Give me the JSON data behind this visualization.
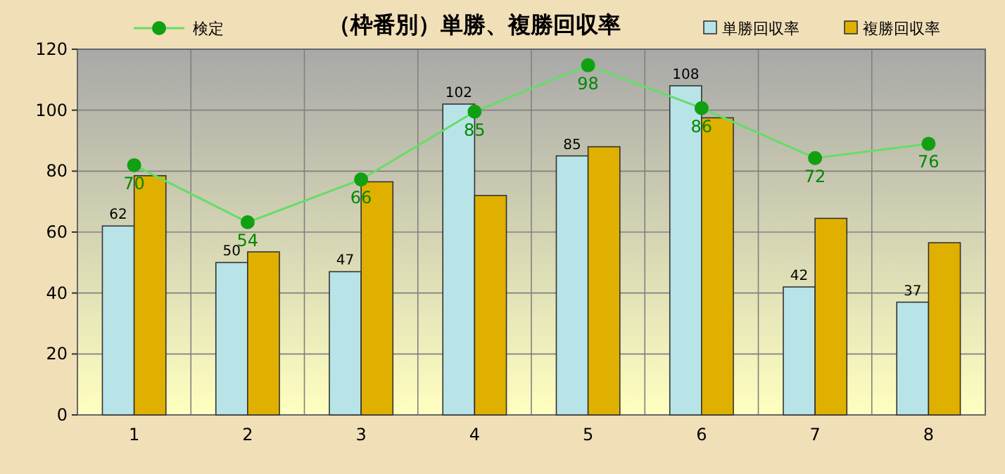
{
  "chart_data": {
    "type": "bar",
    "title": "（枠番別）単勝、複勝回収率",
    "categories": [
      "1",
      "2",
      "3",
      "4",
      "5",
      "6",
      "7",
      "8"
    ],
    "series": [
      {
        "name": "単勝回収率",
        "color": "#b8e4e8",
        "values": [
          62,
          50,
          47,
          102,
          85,
          108,
          42,
          37
        ],
        "value_labels": [
          "62",
          "50",
          "47",
          "102",
          "85",
          "108",
          "42",
          "37"
        ]
      },
      {
        "name": "複勝回収率",
        "color": "#e0b000",
        "values": [
          78.5,
          53.5,
          76.5,
          72,
          88,
          97.5,
          64.5,
          56.5
        ]
      },
      {
        "name": "検定",
        "type": "line",
        "axis": "y2",
        "color": "#66dd66",
        "marker": "circle",
        "values": [
          70,
          54,
          66,
          85,
          98,
          86,
          72,
          76
        ],
        "value_labels": [
          "70",
          "54",
          "66",
          "85",
          "98",
          "86",
          "72",
          "76"
        ]
      }
    ],
    "ylim": [
      0,
      120
    ],
    "yticks": [
      0,
      20,
      40,
      60,
      80,
      100,
      120
    ],
    "y2lim": [
      0,
      102.5
    ],
    "grid": true,
    "legend": "top"
  }
}
